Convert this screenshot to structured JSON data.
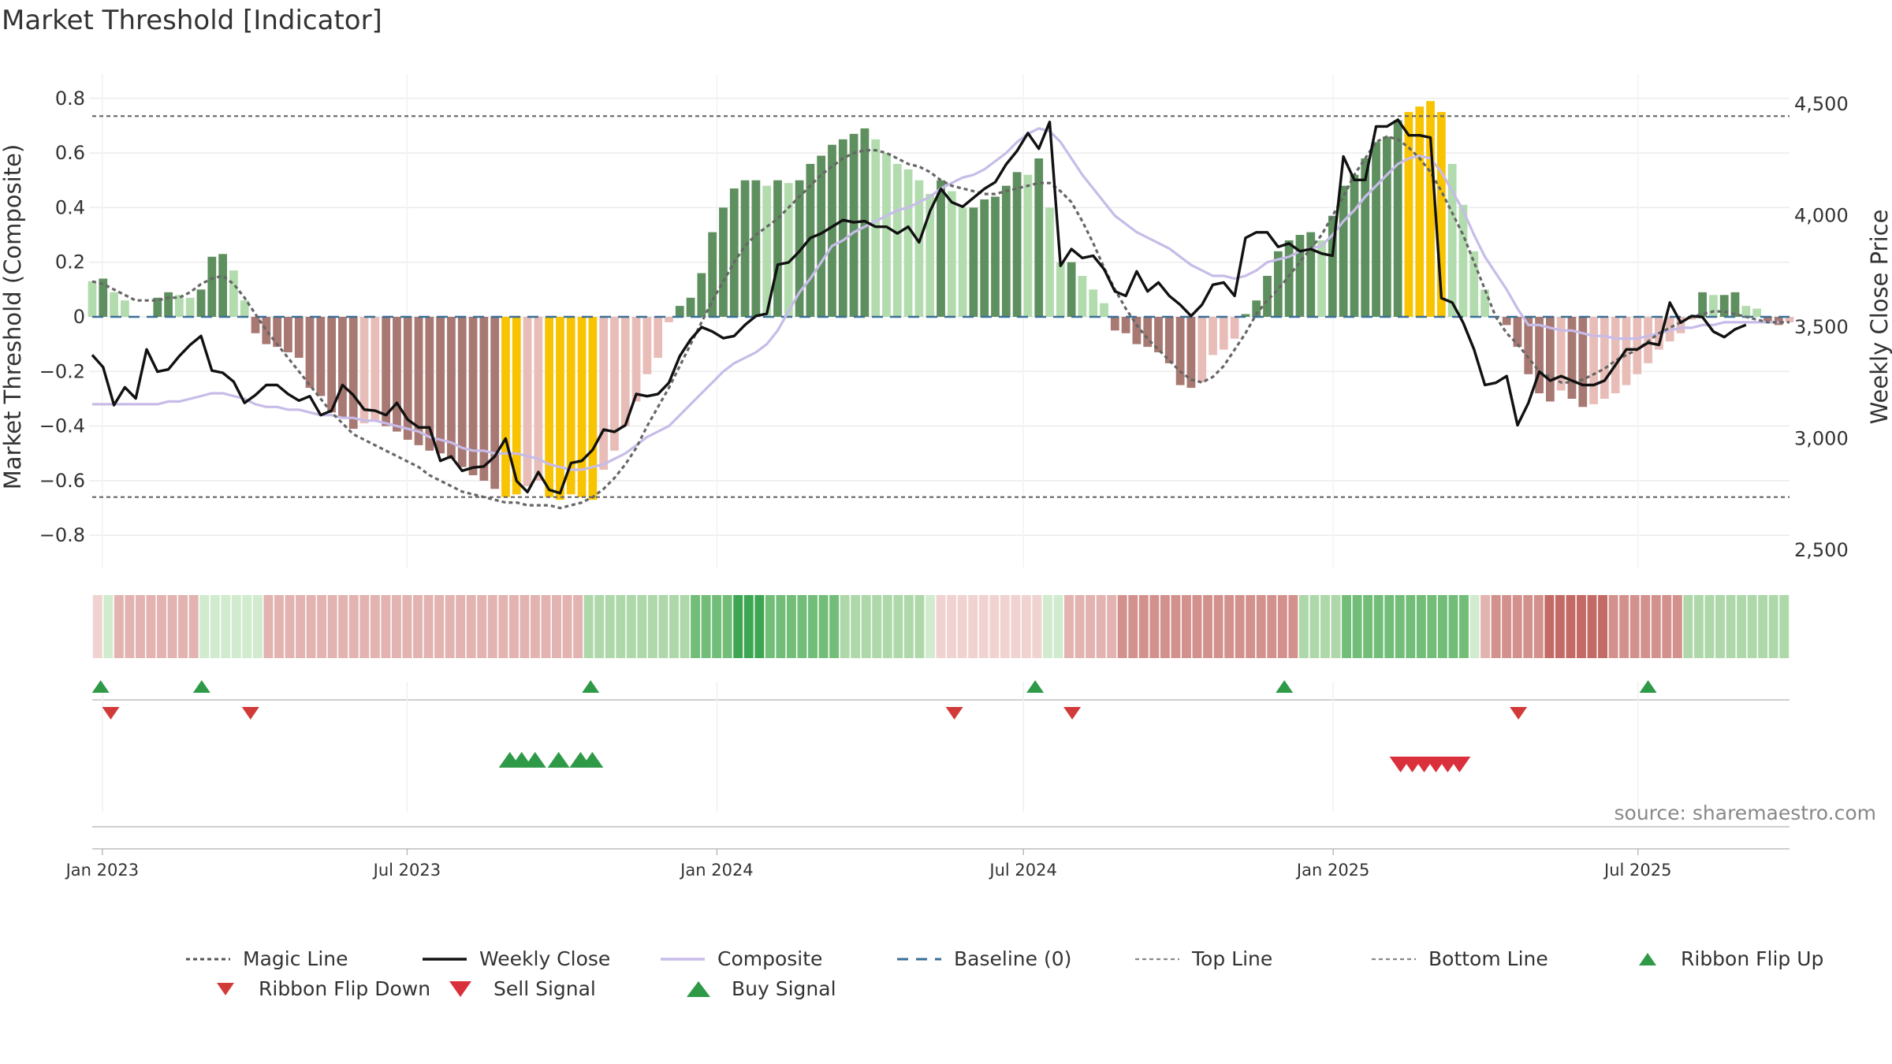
{
  "title": "Market Threshold [Indicator]",
  "source": "source: sharemaestro.com",
  "colors": {
    "dark_green": "#5e8f5e",
    "light_green": "#b2dcae",
    "dark_red": "#a87872",
    "light_red": "#e8bdb8",
    "yellow": "#f8c300",
    "magic": "#666666",
    "weekly": "#111111",
    "composite": "#c7bce8",
    "baseline": "#3b6f96",
    "buy": "#2e9a48",
    "sell": "#d9303b",
    "flip_down": "#d23a3a"
  },
  "chart_data": {
    "type": "bar",
    "title": "Market Threshold [Indicator]",
    "ylabel_left": "Market Threshold (Composite)",
    "ylabel_right": "Weekly Close Price",
    "ylim_left": [
      -0.86,
      0.86
    ],
    "ylim_right": [
      2450,
      4550
    ],
    "yticks_left": [
      "0.8",
      "0.6",
      "0.4",
      "0.2",
      "0",
      "−0.2",
      "−0.4",
      "−0.6",
      "−0.8"
    ],
    "yticks_right": [
      "4,500",
      "4,000",
      "3,500",
      "3,000",
      "2,500"
    ],
    "x_start": "2022-12-26",
    "x_end": "2025-09-29",
    "x_ticks": [
      {
        "date": "2023-01-01",
        "label": "Jan 2023"
      },
      {
        "date": "2023-07-01",
        "label": "Jul 2023"
      },
      {
        "date": "2024-01-01",
        "label": "Jan 2024"
      },
      {
        "date": "2024-07-01",
        "label": "Jul 2024"
      },
      {
        "date": "2025-01-01",
        "label": "Jan 2025"
      },
      {
        "date": "2025-07-01",
        "label": "Jul 2025"
      }
    ],
    "top_line": 0.735,
    "bottom_line": -0.66,
    "baseline": 0,
    "composite_bars": [
      0.13,
      0.14,
      0.09,
      0.06,
      0,
      0,
      0.07,
      0.09,
      0.08,
      0.07,
      0.1,
      0.22,
      0.23,
      0.17,
      0.06,
      -0.06,
      -0.1,
      -0.11,
      -0.13,
      -0.15,
      -0.26,
      -0.29,
      -0.35,
      -0.37,
      -0.41,
      -0.39,
      -0.38,
      -0.4,
      -0.42,
      -0.45,
      -0.47,
      -0.49,
      -0.5,
      -0.52,
      -0.55,
      -0.58,
      -0.6,
      -0.63,
      -0.66,
      -0.65,
      -0.62,
      -0.6,
      -0.66,
      -0.67,
      -0.65,
      -0.66,
      -0.67,
      -0.56,
      -0.49,
      -0.4,
      -0.31,
      -0.21,
      -0.15,
      -0.02,
      0.04,
      0.07,
      0.16,
      0.31,
      0.4,
      0.47,
      0.5,
      0.5,
      0.48,
      0.5,
      0.49,
      0.5,
      0.56,
      0.59,
      0.63,
      0.65,
      0.67,
      0.69,
      0.65,
      0.6,
      0.56,
      0.54,
      0.5,
      0.45,
      0.5,
      0.46,
      0.4,
      0.4,
      0.43,
      0.44,
      0.48,
      0.53,
      0.52,
      0.58,
      0.4,
      0.2,
      0.2,
      0.15,
      0.1,
      0.05,
      -0.05,
      -0.06,
      -0.1,
      -0.11,
      -0.13,
      -0.17,
      -0.25,
      -0.26,
      -0.24,
      -0.14,
      -0.12,
      -0.08,
      0.01,
      0.06,
      0.15,
      0.24,
      0.28,
      0.3,
      0.31,
      0.28,
      0.37,
      0.48,
      0.52,
      0.58,
      0.64,
      0.66,
      0.72,
      0.75,
      0.77,
      0.79,
      0.75,
      0.56,
      0.41,
      0.24,
      0.1,
      0,
      -0.03,
      -0.11,
      -0.21,
      -0.28,
      -0.31,
      -0.27,
      -0.3,
      -0.33,
      -0.32,
      -0.3,
      -0.28,
      -0.25,
      -0.21,
      -0.17,
      -0.12,
      -0.09,
      -0.06,
      -0.01,
      0.09,
      0.08,
      0.08,
      0.09,
      0.04,
      0.03,
      -0.02,
      -0.03,
      -0.02
    ],
    "weekly_close": [
      3375,
      3320,
      3150,
      3230,
      3180,
      3400,
      3300,
      3310,
      3370,
      3420,
      3460,
      3305,
      3295,
      3255,
      3160,
      3195,
      3240,
      3240,
      3200,
      3170,
      3190,
      3105,
      3125,
      3240,
      3195,
      3130,
      3125,
      3105,
      3160,
      3085,
      3050,
      3050,
      2900,
      2920,
      2855,
      2870,
      2875,
      2920,
      3000,
      2810,
      2760,
      2850,
      2770,
      2755,
      2890,
      2900,
      2950,
      3040,
      3030,
      3060,
      3200,
      3190,
      3200,
      3250,
      3370,
      3445,
      3500,
      3480,
      3450,
      3460,
      3510,
      3550,
      3560,
      3780,
      3790,
      3840,
      3900,
      3920,
      3950,
      3980,
      3970,
      3975,
      3950,
      3950,
      3920,
      3950,
      3880,
      4020,
      4120,
      4060,
      4040,
      4080,
      4120,
      4150,
      4230,
      4290,
      4370,
      4300,
      4420,
      3775,
      3850,
      3810,
      3820,
      3760,
      3660,
      3640,
      3750,
      3660,
      3700,
      3640,
      3600,
      3550,
      3600,
      3690,
      3700,
      3640,
      3900,
      3925,
      3925,
      3860,
      3875,
      3840,
      3850,
      3830,
      3820,
      4265,
      4160,
      4160,
      4400,
      4400,
      4430,
      4360,
      4360,
      4350,
      3630,
      3610,
      3520,
      3400,
      3240,
      3250,
      3280,
      3060,
      3160,
      3300,
      3260,
      3280,
      3260,
      3240,
      3240,
      3260,
      3330,
      3400,
      3400,
      3430,
      3420,
      3610,
      3520,
      3550,
      3545,
      3480,
      3455,
      3490,
      3510
    ],
    "magic_line": [
      0.13,
      0.12,
      0.1,
      0.08,
      0.06,
      0.06,
      0.06,
      0.07,
      0.07,
      0.09,
      0.12,
      0.14,
      0.15,
      0.12,
      0.07,
      0.01,
      -0.05,
      -0.1,
      -0.15,
      -0.2,
      -0.25,
      -0.3,
      -0.35,
      -0.39,
      -0.43,
      -0.45,
      -0.47,
      -0.49,
      -0.51,
      -0.53,
      -0.55,
      -0.58,
      -0.6,
      -0.62,
      -0.64,
      -0.65,
      -0.66,
      -0.67,
      -0.68,
      -0.68,
      -0.69,
      -0.69,
      -0.69,
      -0.7,
      -0.69,
      -0.68,
      -0.66,
      -0.63,
      -0.59,
      -0.54,
      -0.48,
      -0.4,
      -0.33,
      -0.26,
      -0.18,
      -0.1,
      -0.02,
      0.06,
      0.13,
      0.2,
      0.26,
      0.3,
      0.33,
      0.36,
      0.4,
      0.44,
      0.48,
      0.52,
      0.55,
      0.58,
      0.6,
      0.61,
      0.61,
      0.6,
      0.58,
      0.56,
      0.55,
      0.53,
      0.5,
      0.48,
      0.47,
      0.46,
      0.45,
      0.45,
      0.46,
      0.47,
      0.48,
      0.49,
      0.49,
      0.46,
      0.42,
      0.35,
      0.27,
      0.18,
      0.1,
      0.03,
      -0.03,
      -0.08,
      -0.12,
      -0.16,
      -0.2,
      -0.23,
      -0.24,
      -0.22,
      -0.18,
      -0.12,
      -0.06,
      0.01,
      0.06,
      0.1,
      0.15,
      0.2,
      0.25,
      0.3,
      0.37,
      0.44,
      0.52,
      0.58,
      0.64,
      0.66,
      0.65,
      0.62,
      0.58,
      0.53,
      0.46,
      0.38,
      0.3,
      0.2,
      0.1,
      0,
      -0.06,
      -0.1,
      -0.15,
      -0.2,
      -0.22,
      -0.24,
      -0.24,
      -0.23,
      -0.21,
      -0.19,
      -0.16,
      -0.14,
      -0.12,
      -0.09,
      -0.06,
      -0.04,
      -0.02,
      0,
      0.01,
      0.02,
      0.02,
      0.01,
      0.0,
      -0.01,
      -0.02,
      -0.02,
      -0.02
    ],
    "composite_line": [
      -0.32,
      -0.32,
      -0.32,
      -0.32,
      -0.32,
      -0.32,
      -0.32,
      -0.31,
      -0.31,
      -0.3,
      -0.29,
      -0.28,
      -0.28,
      -0.29,
      -0.3,
      -0.32,
      -0.33,
      -0.33,
      -0.34,
      -0.34,
      -0.35,
      -0.36,
      -0.36,
      -0.37,
      -0.37,
      -0.38,
      -0.38,
      -0.39,
      -0.4,
      -0.41,
      -0.42,
      -0.44,
      -0.45,
      -0.46,
      -0.48,
      -0.49,
      -0.49,
      -0.5,
      -0.5,
      -0.5,
      -0.51,
      -0.52,
      -0.54,
      -0.55,
      -0.56,
      -0.56,
      -0.55,
      -0.54,
      -0.52,
      -0.5,
      -0.47,
      -0.44,
      -0.42,
      -0.4,
      -0.36,
      -0.32,
      -0.28,
      -0.24,
      -0.2,
      -0.17,
      -0.15,
      -0.13,
      -0.1,
      -0.05,
      0.02,
      0.09,
      0.14,
      0.2,
      0.26,
      0.28,
      0.31,
      0.33,
      0.35,
      0.37,
      0.39,
      0.4,
      0.42,
      0.44,
      0.47,
      0.49,
      0.51,
      0.52,
      0.54,
      0.57,
      0.6,
      0.64,
      0.67,
      0.69,
      0.68,
      0.64,
      0.58,
      0.52,
      0.47,
      0.42,
      0.37,
      0.34,
      0.31,
      0.29,
      0.27,
      0.25,
      0.22,
      0.19,
      0.17,
      0.15,
      0.15,
      0.14,
      0.15,
      0.17,
      0.2,
      0.21,
      0.22,
      0.24,
      0.25,
      0.26,
      0.3,
      0.35,
      0.39,
      0.44,
      0.48,
      0.52,
      0.56,
      0.58,
      0.59,
      0.58,
      0.53,
      0.46,
      0.39,
      0.3,
      0.22,
      0.16,
      0.1,
      0.03,
      -0.03,
      -0.03,
      -0.04,
      -0.05,
      -0.05,
      -0.06,
      -0.07,
      -0.07,
      -0.08,
      -0.08,
      -0.08,
      -0.07,
      -0.06,
      -0.05,
      -0.04,
      -0.04,
      -0.03,
      -0.03,
      -0.02,
      -0.02,
      -0.02,
      -0.02,
      -0.02,
      -0.02
    ],
    "ribbon": [
      -1,
      1,
      -2,
      -2,
      -2,
      -2,
      -2,
      -2,
      -2,
      -2,
      1,
      1,
      1,
      1,
      1,
      1,
      -2,
      -2,
      -2,
      -2,
      -2,
      -2,
      -2,
      -2,
      -2,
      -2,
      -2,
      -2,
      -2,
      -2,
      -2,
      -2,
      -2,
      -2,
      -2,
      -2,
      -2,
      -2,
      -2,
      -2,
      -2,
      -2,
      -2,
      -2,
      -2,
      -2,
      2,
      2,
      2,
      2,
      2,
      2,
      2,
      2,
      2,
      2,
      3,
      3,
      3,
      3,
      4,
      4,
      4,
      3,
      3,
      3,
      3,
      3,
      3,
      3,
      2,
      2,
      2,
      2,
      2,
      2,
      2,
      2,
      1,
      -1,
      -1,
      -1,
      -1,
      -1,
      -1,
      -1,
      -1,
      -1,
      -1,
      1,
      1,
      -2,
      -2,
      -2,
      -2,
      -2,
      -3,
      -3,
      -3,
      -3,
      -3,
      -3,
      -3,
      -3,
      -3,
      -3,
      -3,
      -3,
      -3,
      -3,
      -3,
      -3,
      -3,
      2,
      2,
      2,
      2,
      3,
      3,
      3,
      3,
      3,
      3,
      3,
      3,
      3,
      3,
      3,
      3,
      1,
      -2,
      -3,
      -3,
      -3,
      -3,
      -3,
      -4,
      -4,
      -4,
      -4,
      -4,
      -4,
      -3,
      -3,
      -3,
      -3,
      -3,
      -3,
      -3,
      2,
      2,
      2,
      2,
      2,
      2,
      2,
      2,
      2,
      2
    ],
    "ribbon_flip_up": [
      "2022-12-31",
      "2023-03-01",
      "2023-10-18",
      "2024-07-08",
      "2024-12-03",
      "2025-07-07"
    ],
    "ribbon_flip_down": [
      "2023-01-06",
      "2023-03-30",
      "2024-05-21",
      "2024-07-30",
      "2025-04-21"
    ],
    "buy_signals": [
      "2023-08-31",
      "2023-09-07",
      "2023-09-15",
      "2023-09-29",
      "2023-10-12",
      "2023-10-19"
    ],
    "sell_signals": [
      "2025-02-10",
      "2025-02-17",
      "2025-02-24",
      "2025-03-03",
      "2025-03-10",
      "2025-03-17"
    ],
    "legend": [
      {
        "label": "Magic Line",
        "kind": "line",
        "style": "dot-dark"
      },
      {
        "label": "Weekly Close",
        "kind": "line",
        "style": "solid-black"
      },
      {
        "label": "Composite",
        "kind": "line",
        "style": "solid-lavender"
      },
      {
        "label": "Baseline (0)",
        "kind": "line",
        "style": "dash-blue"
      },
      {
        "label": "Top Line",
        "kind": "line",
        "style": "dot-gray"
      },
      {
        "label": "Bottom Line",
        "kind": "line",
        "style": "dot-gray"
      },
      {
        "label": "Ribbon Flip Up",
        "kind": "marker",
        "style": "up-green-small"
      },
      {
        "label": "Ribbon Flip Down",
        "kind": "marker",
        "style": "down-red-small"
      },
      {
        "label": "Sell Signal",
        "kind": "marker",
        "style": "down-red-big"
      },
      {
        "label": "Buy Signal",
        "kind": "marker",
        "style": "up-green-big"
      }
    ]
  }
}
